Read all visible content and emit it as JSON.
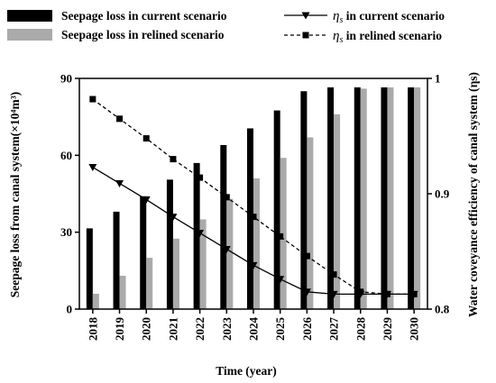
{
  "chart_data": {
    "type": "bar",
    "categories": [
      "2018",
      "2019",
      "2020",
      "2021",
      "2022",
      "2023",
      "2024",
      "2025",
      "2026",
      "2027",
      "2028",
      "2029",
      "2030"
    ],
    "xlabel": "Time (year)",
    "ylabel_left": "Seepage loss from canal system(×10⁴m³)",
    "ylabel_right": "Water coveyance efficiency of canal system (ηs)",
    "ylim_left": [
      0,
      90
    ],
    "yticks_left": [
      0,
      30,
      60,
      90
    ],
    "ylim_right": [
      0.8,
      1.0
    ],
    "yticks_right": [
      0.8,
      0.9,
      1.0
    ],
    "grid": false,
    "legend_position": "top",
    "bar_series": [
      {
        "name": "Seepage loss in current scenario",
        "color": "#000000",
        "values": [
          31.5,
          38,
          44,
          50.5,
          57,
          64,
          70.5,
          77.5,
          85,
          86.5,
          86.5,
          86.5,
          86.5
        ]
      },
      {
        "name": "Seepage loss in relined scenario",
        "color": "#aaaaaa",
        "values": [
          6,
          13,
          20,
          27.5,
          35,
          43,
          51,
          59,
          67,
          76,
          86,
          86.5,
          86.5
        ]
      }
    ],
    "line_series": [
      {
        "name": "ηs in current scenario",
        "marker": "triangle-down",
        "style": "solid",
        "color": "#000000",
        "values": [
          0.923,
          0.909,
          0.895,
          0.88,
          0.866,
          0.852,
          0.838,
          0.826,
          0.815,
          0.813,
          0.813,
          0.813,
          0.813
        ]
      },
      {
        "name": "ηs in relined scenario",
        "marker": "square",
        "style": "dashed",
        "color": "#000000",
        "values": [
          0.982,
          0.965,
          0.948,
          0.93,
          0.914,
          0.897,
          0.88,
          0.863,
          0.846,
          0.83,
          0.815,
          0.813,
          0.813
        ]
      }
    ]
  }
}
